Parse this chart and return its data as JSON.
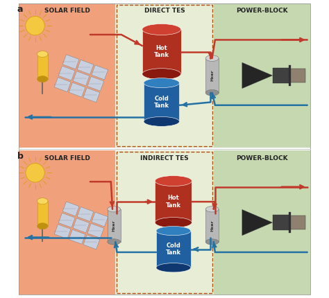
{
  "fig_width": 4.74,
  "fig_height": 4.3,
  "dpi": 100,
  "bg_color": "#ffffff",
  "solar_field_bg": "#f0a07a",
  "tes_bg": "#e8edd5",
  "power_block_bg": "#c5d8b0",
  "red_arrow": "#c0392b",
  "blue_arrow": "#2471a3",
  "hot_tank_color": "#b03020",
  "cold_tank_color": "#2060a0",
  "hxer_color": "#aaaaaa",
  "label_a": "a",
  "label_b": "b",
  "solar_field_label": "SOLAR FIELD",
  "direct_tes_label": "DIRECT TES",
  "indirect_tes_label": "INDIRECT TES",
  "power_block_label": "POWER-BLOCK",
  "hot_tank_label": "Hot\nTank",
  "cold_tank_label": "Cold\nTank",
  "hxer_label": "Hxer",
  "dashed_color": "#b05010",
  "section_label_fontsize": 6.5,
  "tank_label_fontsize": 5.5,
  "hxer_fontsize": 4.5,
  "panel_label_fontsize": 9
}
